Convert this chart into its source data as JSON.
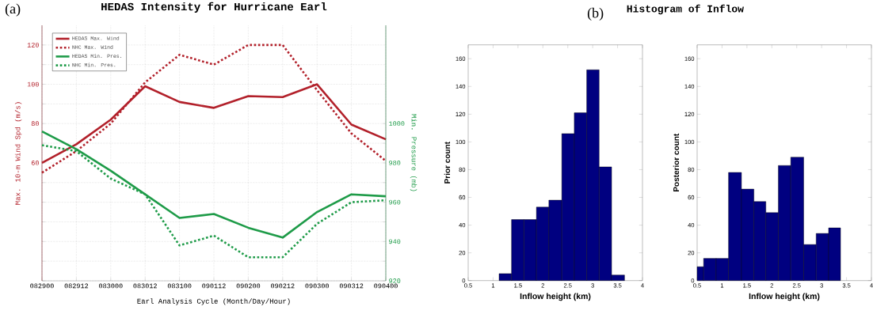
{
  "chart_data": [
    {
      "type": "line",
      "title": "HEDAS Intensity for Hurricane Earl",
      "xlabel": "Earl Analysis Cycle (Month/Day/Hour)",
      "ylabel": "Max. 10-m Wind Spd (m/s)",
      "y2label": "Min. Pressure (mb)",
      "annotations": [
        "(a)"
      ],
      "categories": [
        "082900",
        "082912",
        "083000",
        "083012",
        "083100",
        "090112",
        "090200",
        "090212",
        "090300",
        "090312",
        "090400"
      ],
      "series": [
        {
          "name": "HEDAS Max. Wind",
          "color": "#b2202a",
          "line_style": "solid",
          "values": [
            60,
            69.5,
            82,
            99,
            91,
            88,
            94,
            93.5,
            100,
            79.5,
            72
          ]
        },
        {
          "name": "NHC Max. Wind",
          "color": "#b2202a",
          "line_style": "dotted",
          "values": [
            55,
            66,
            80,
            101,
            115,
            110,
            120,
            120,
            97,
            75,
            61
          ]
        },
        {
          "name": "HEDAS Min. Pres.",
          "color": "#1e9b48",
          "line_style": "solid",
          "axis": "y2",
          "values": [
            996,
            987,
            976,
            964,
            952,
            954,
            947,
            942,
            955,
            964,
            963
          ]
        },
        {
          "name": "NHC Min. Pres.",
          "color": "#1e9b48",
          "line_style": "dotted",
          "axis": "y2",
          "values": [
            989,
            986,
            972,
            964,
            938,
            943,
            932,
            932,
            949,
            960,
            961
          ]
        }
      ],
      "ylim": [
        0,
        130
      ],
      "yticks": [
        {
          "value": 0,
          "label": null
        },
        {
          "value": 10,
          "label": null
        },
        {
          "value": 20,
          "label": null
        },
        {
          "value": 30,
          "label": null
        },
        {
          "value": 40,
          "label": null
        },
        {
          "value": 50,
          "label": null
        },
        60,
        {
          "value": 70,
          "label": null
        },
        80,
        {
          "value": 90,
          "label": null
        },
        100,
        {
          "value": 110,
          "label": null
        },
        120
      ],
      "y2lim": [
        920,
        1050
      ],
      "y2ticks": [
        920,
        {
          "value": 930,
          "label": null
        },
        940,
        {
          "value": 950,
          "label": null
        },
        960,
        {
          "value": 970,
          "label": null
        },
        980,
        {
          "value": 990,
          "label": null
        },
        1000
      ],
      "grid": true,
      "legend": "top left"
    },
    {
      "type": "histogram",
      "title": "Histogram of Inflow",
      "annotations": [
        "(b)"
      ],
      "xlabel": "Inflow height (km)",
      "ylabel": "Prior count",
      "bins": [
        1.12,
        1.37,
        1.62,
        1.87,
        2.12,
        2.38,
        2.63,
        2.88,
        3.13,
        3.38,
        3.64
      ],
      "values": [
        5,
        44,
        44,
        53,
        58,
        106,
        121,
        152,
        82,
        4
      ],
      "color": "#000080",
      "xlim": [
        0.5,
        4
      ],
      "xticks": [
        0.5,
        1,
        1.5,
        2,
        2.5,
        3,
        3.5,
        4
      ],
      "ylim": [
        0,
        170
      ],
      "yticks": [
        0,
        20,
        40,
        60,
        80,
        100,
        120,
        140,
        160
      ]
    },
    {
      "type": "histogram",
      "xlabel": "Inflow height (km)",
      "ylabel": "Posterior count",
      "bins": [
        0.5,
        0.63,
        0.88,
        1.13,
        1.39,
        1.64,
        1.88,
        2.13,
        2.38,
        2.64,
        2.89,
        3.14,
        3.38
      ],
      "values": [
        10,
        16,
        16,
        78,
        66,
        57,
        49,
        83,
        89,
        26,
        34,
        38
      ],
      "color": "#000080",
      "xlim": [
        0.5,
        4
      ],
      "xticks": [
        0.5,
        1,
        1.5,
        2,
        2.5,
        3,
        3.5,
        4
      ],
      "ylim": [
        0,
        170
      ],
      "yticks": [
        0,
        20,
        40,
        60,
        80,
        100,
        120,
        140,
        160
      ]
    }
  ]
}
